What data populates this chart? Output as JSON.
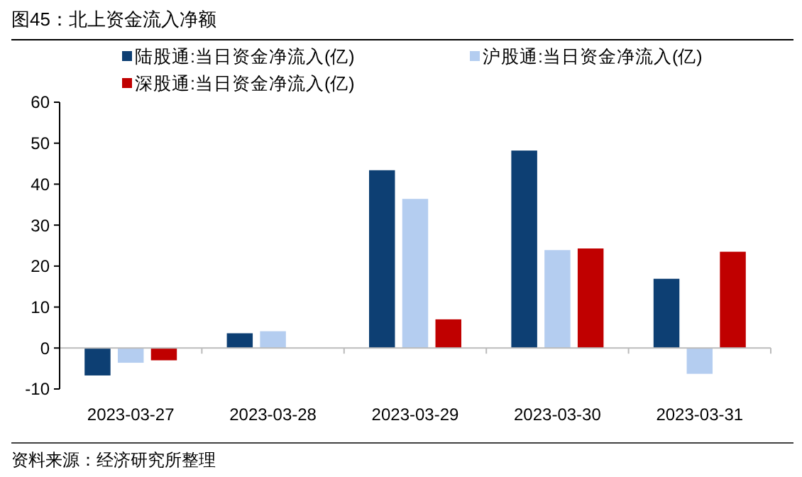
{
  "chart_data": {
    "type": "bar",
    "title": "图45：北上资金流入净额",
    "categories": [
      "2023-03-27",
      "2023-03-28",
      "2023-03-29",
      "2023-03-30",
      "2023-03-31"
    ],
    "series": [
      {
        "name": "陆股通:当日资金净流入(亿)",
        "color": "#0d3f73",
        "values": [
          -6.7,
          3.6,
          43.4,
          48.2,
          16.9
        ]
      },
      {
        "name": "沪股通:当日资金净流入(亿)",
        "color": "#b4cdf0",
        "values": [
          -3.6,
          4.1,
          36.4,
          23.9,
          -6.3
        ]
      },
      {
        "name": "深股通:当日资金净流入(亿)",
        "color": "#c00000",
        "values": [
          -3.0,
          null,
          7.0,
          24.3,
          23.5
        ]
      }
    ],
    "ylim": [
      -10,
      60
    ],
    "yticks": [
      -10,
      0,
      10,
      20,
      30,
      40,
      50,
      60
    ],
    "legend": "top",
    "annotations": [
      "资料来源：经济研究所整理"
    ]
  }
}
